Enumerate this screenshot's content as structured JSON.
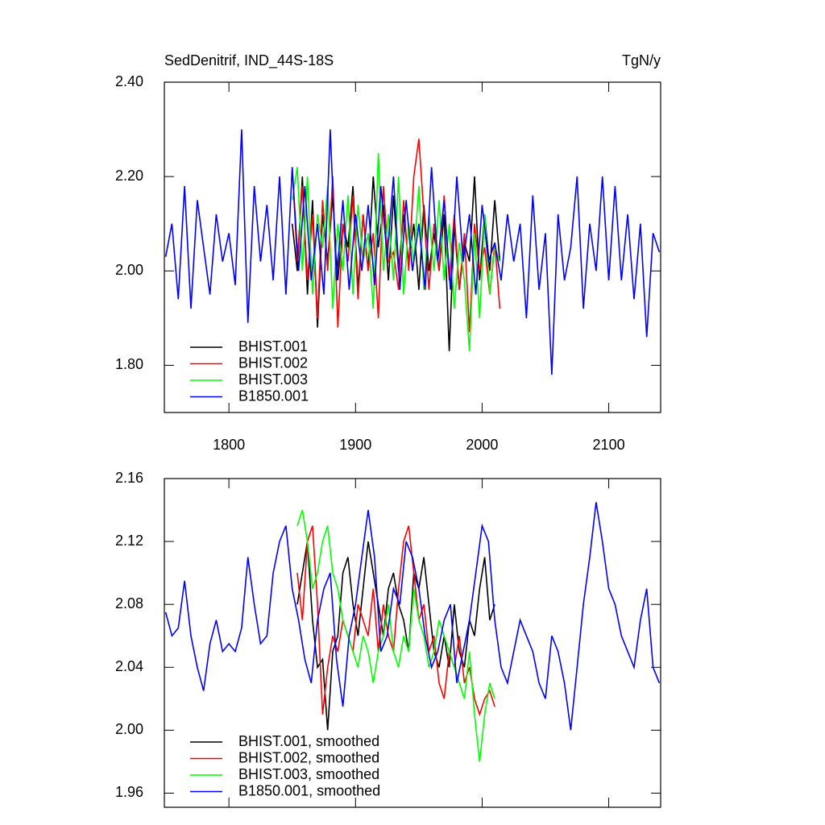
{
  "chart_data": [
    {
      "type": "line",
      "title": "SedDenitrif, IND_44S-18S",
      "units": "TgN/y",
      "xlim": [
        1749,
        2141
      ],
      "xticks": [
        1800,
        1900,
        2000,
        2100
      ],
      "show_xtick_labels": true,
      "ylim": [
        1.7,
        2.4
      ],
      "yticks": [
        {
          "value": 1.8,
          "label": "1.80"
        },
        {
          "value": 2.0,
          "label": "2.00"
        },
        {
          "value": 2.2,
          "label": "2.20"
        },
        {
          "value": 2.4,
          "label": "2.40"
        }
      ],
      "legend": "lower left",
      "series": [
        {
          "name": "BHIST.001",
          "color": "#000000",
          "x": [
            1850,
            1854,
            1858,
            1862,
            1866,
            1870,
            1874,
            1878,
            1882,
            1886,
            1890,
            1894,
            1898,
            1902,
            1906,
            1910,
            1914,
            1918,
            1922,
            1926,
            1930,
            1934,
            1938,
            1942,
            1946,
            1950,
            1954,
            1958,
            1962,
            1966,
            1970,
            1974,
            1978,
            1982,
            1986,
            1990,
            1994,
            1998,
            2002,
            2006,
            2010,
            2014
          ],
          "values": [
            2.1,
            2.0,
            2.2,
            1.95,
            2.15,
            1.88,
            2.12,
            2.02,
            2.16,
            1.98,
            2.1,
            2.05,
            2.18,
            1.96,
            2.12,
            2.0,
            2.2,
            2.05,
            2.14,
            1.98,
            2.16,
            2.0,
            2.12,
            2.02,
            2.1,
            1.96,
            2.14,
            2.0,
            2.08,
            2.0,
            2.12,
            1.83,
            2.1,
            1.96,
            2.06,
            2.02,
            2.2,
            1.98,
            2.12,
            2.0,
            2.15,
            2.02
          ]
        },
        {
          "name": "BHIST.002",
          "color": "#ff0000",
          "x": [
            1850,
            1854,
            1858,
            1862,
            1866,
            1870,
            1874,
            1878,
            1882,
            1886,
            1890,
            1894,
            1898,
            1902,
            1906,
            1910,
            1914,
            1918,
            1922,
            1926,
            1930,
            1934,
            1938,
            1942,
            1946,
            1950,
            1954,
            1958,
            1962,
            1966,
            1970,
            1974,
            1978,
            1982,
            1986,
            1990,
            1994,
            1998,
            2002,
            2006,
            2010,
            2014
          ],
          "values": [
            2.22,
            2.02,
            2.18,
            1.98,
            2.12,
            1.9,
            2.15,
            2.0,
            2.2,
            1.88,
            2.1,
            2.02,
            2.16,
            1.94,
            2.12,
            2.0,
            2.08,
            1.9,
            2.18,
            2.02,
            2.04,
            1.96,
            2.15,
            2.0,
            2.2,
            2.28,
            2.12,
            1.96,
            2.1,
            2.0,
            2.16,
            1.98,
            2.12,
            1.96,
            2.08,
            1.87,
            2.1,
            2.0,
            2.05,
            1.95,
            2.06,
            1.92
          ]
        },
        {
          "name": "BHIST.003",
          "color": "#00ff00",
          "x": [
            1850,
            1854,
            1858,
            1862,
            1866,
            1870,
            1874,
            1878,
            1882,
            1886,
            1890,
            1894,
            1898,
            1902,
            1906,
            1910,
            1914,
            1918,
            1922,
            1926,
            1930,
            1934,
            1938,
            1942,
            1946,
            1950,
            1954,
            1958,
            1962,
            1966,
            1970,
            1974,
            1978,
            1982,
            1986,
            1990,
            1994,
            1998,
            2002,
            2006,
            2010,
            2014
          ],
          "values": [
            2.15,
            2.22,
            2.0,
            2.2,
            1.95,
            2.12,
            2.05,
            2.18,
            1.92,
            2.1,
            2.0,
            2.16,
            1.95,
            2.14,
            2.02,
            2.08,
            1.92,
            2.25,
            2.0,
            2.12,
            1.98,
            2.2,
            1.95,
            2.1,
            2.02,
            2.18,
            1.96,
            2.12,
            2.0,
            2.15,
            1.98,
            2.1,
            1.92,
            2.06,
            1.98,
            1.83,
            2.08,
            1.9,
            2.12,
            1.95,
            2.05,
            2.02
          ]
        },
        {
          "name": "B1850.001",
          "color": "#0000ff",
          "x": [
            1750,
            1755,
            1760,
            1765,
            1770,
            1775,
            1780,
            1785,
            1790,
            1795,
            1800,
            1805,
            1810,
            1815,
            1820,
            1825,
            1830,
            1835,
            1840,
            1845,
            1850,
            1855,
            1860,
            1865,
            1870,
            1875,
            1880,
            1885,
            1890,
            1895,
            1900,
            1905,
            1910,
            1915,
            1920,
            1925,
            1930,
            1935,
            1940,
            1945,
            1950,
            1955,
            1960,
            1965,
            1970,
            1975,
            1980,
            1985,
            1990,
            1995,
            2000,
            2005,
            2010,
            2015,
            2020,
            2025,
            2030,
            2035,
            2040,
            2045,
            2050,
            2055,
            2060,
            2065,
            2070,
            2075,
            2080,
            2085,
            2090,
            2095,
            2100,
            2105,
            2110,
            2115,
            2120,
            2125,
            2130,
            2135,
            2140
          ],
          "values": [
            2.03,
            2.1,
            1.94,
            2.18,
            1.92,
            2.15,
            2.05,
            1.95,
            2.12,
            2.02,
            2.08,
            1.97,
            2.3,
            1.89,
            2.18,
            2.02,
            2.14,
            1.98,
            2.2,
            1.95,
            2.22,
            2.0,
            2.18,
            1.98,
            2.1,
            1.95,
            2.3,
            1.98,
            2.15,
            1.96,
            2.12,
            2.0,
            2.14,
            1.97,
            2.18,
            2.03,
            2.2,
            1.96,
            2.15,
            2.0,
            2.1,
            1.96,
            2.22,
            2.02,
            2.15,
            1.96,
            2.2,
            2.02,
            2.12,
            1.95,
            2.14,
            2.02,
            2.06,
            1.98,
            2.12,
            2.02,
            2.1,
            1.9,
            2.16,
            1.96,
            2.08,
            1.78,
            2.12,
            1.98,
            2.05,
            2.2,
            1.92,
            2.1,
            2.0,
            2.2,
            1.98,
            2.18,
            1.98,
            2.12,
            1.94,
            2.1,
            1.86,
            2.08,
            2.04
          ]
        }
      ]
    },
    {
      "type": "line",
      "xlim": [
        1749,
        2141
      ],
      "xticks": [
        1800,
        1900,
        2000,
        2100
      ],
      "show_xtick_labels": false,
      "ylim": [
        1.951,
        2.16
      ],
      "yticks": [
        1.96,
        {
          "value": 2.0,
          "label": "2.00"
        },
        2.04,
        2.08,
        2.12,
        2.16
      ],
      "legend": "lower left",
      "series": [
        {
          "name": "BHIST.001, smoothed",
          "color": "#000000",
          "x": [
            1854,
            1858,
            1862,
            1866,
            1870,
            1874,
            1878,
            1882,
            1886,
            1890,
            1894,
            1898,
            1902,
            1906,
            1910,
            1914,
            1918,
            1922,
            1926,
            1930,
            1934,
            1938,
            1942,
            1946,
            1950,
            1954,
            1958,
            1962,
            1966,
            1970,
            1974,
            1978,
            1982,
            1986,
            1990,
            1994,
            1998,
            2002,
            2006,
            2010
          ],
          "values": [
            2.08,
            2.1,
            2.12,
            2.07,
            2.04,
            2.045,
            2.0,
            2.05,
            2.06,
            2.1,
            2.11,
            2.08,
            2.06,
            2.09,
            2.12,
            2.1,
            2.08,
            2.06,
            2.09,
            2.1,
            2.08,
            2.07,
            2.05,
            2.1,
            2.09,
            2.11,
            2.08,
            2.05,
            2.04,
            2.06,
            2.04,
            2.08,
            2.05,
            2.04,
            2.07,
            2.06,
            2.09,
            2.11,
            2.07,
            2.08
          ]
        },
        {
          "name": "BHIST.002, smoothed",
          "color": "#ff0000",
          "x": [
            1854,
            1858,
            1862,
            1866,
            1870,
            1874,
            1878,
            1882,
            1886,
            1890,
            1894,
            1898,
            1902,
            1906,
            1910,
            1914,
            1918,
            1922,
            1926,
            1930,
            1934,
            1938,
            1942,
            1946,
            1950,
            1954,
            1958,
            1962,
            1966,
            1970,
            1974,
            1978,
            1982,
            1986,
            1990,
            1994,
            1998,
            2002,
            2006,
            2010
          ],
          "values": [
            2.1,
            2.07,
            2.12,
            2.13,
            2.08,
            2.01,
            2.04,
            2.06,
            2.05,
            2.07,
            2.06,
            2.05,
            2.08,
            2.07,
            2.06,
            2.09,
            2.05,
            2.08,
            2.06,
            2.05,
            2.09,
            2.12,
            2.13,
            2.1,
            2.07,
            2.08,
            2.05,
            2.06,
            2.03,
            2.02,
            2.05,
            2.04,
            2.06,
            2.03,
            2.04,
            2.02,
            2.01,
            2.02,
            2.025,
            2.015
          ]
        },
        {
          "name": "BHIST.003, smoothed",
          "color": "#00ff00",
          "x": [
            1854,
            1858,
            1862,
            1866,
            1870,
            1874,
            1878,
            1882,
            1886,
            1890,
            1894,
            1898,
            1902,
            1906,
            1910,
            1914,
            1918,
            1922,
            1926,
            1930,
            1934,
            1938,
            1942,
            1946,
            1950,
            1954,
            1958,
            1962,
            1966,
            1970,
            1974,
            1978,
            1982,
            1986,
            1990,
            1994,
            1998,
            2002,
            2006,
            2010
          ],
          "values": [
            2.13,
            2.14,
            2.12,
            2.09,
            2.1,
            2.12,
            2.13,
            2.1,
            2.09,
            2.07,
            2.06,
            2.05,
            2.04,
            2.06,
            2.05,
            2.03,
            2.05,
            2.06,
            2.08,
            2.05,
            2.04,
            2.06,
            2.05,
            2.09,
            2.07,
            2.06,
            2.04,
            2.05,
            2.07,
            2.06,
            2.05,
            2.04,
            2.03,
            2.02,
            2.05,
            2.01,
            1.98,
            2.01,
            2.03,
            2.02
          ]
        },
        {
          "name": "B1850.001, smoothed",
          "color": "#0000ff",
          "x": [
            1750,
            1755,
            1760,
            1765,
            1770,
            1775,
            1780,
            1785,
            1790,
            1795,
            1800,
            1805,
            1810,
            1815,
            1820,
            1825,
            1830,
            1835,
            1840,
            1845,
            1850,
            1855,
            1860,
            1865,
            1870,
            1875,
            1880,
            1885,
            1890,
            1895,
            1900,
            1905,
            1910,
            1915,
            1920,
            1925,
            1930,
            1935,
            1940,
            1945,
            1950,
            1955,
            1960,
            1965,
            1970,
            1975,
            1980,
            1985,
            1990,
            1995,
            2000,
            2005,
            2010,
            2015,
            2020,
            2025,
            2030,
            2035,
            2040,
            2045,
            2050,
            2055,
            2060,
            2065,
            2070,
            2075,
            2080,
            2085,
            2090,
            2095,
            2100,
            2105,
            2110,
            2115,
            2120,
            2125,
            2130,
            2135,
            2140
          ],
          "values": [
            2.075,
            2.06,
            2.065,
            2.095,
            2.06,
            2.04,
            2.025,
            2.055,
            2.07,
            2.05,
            2.055,
            2.05,
            2.065,
            2.11,
            2.08,
            2.055,
            2.06,
            2.1,
            2.12,
            2.13,
            2.09,
            2.07,
            2.045,
            2.03,
            2.07,
            2.09,
            2.1,
            2.045,
            2.015,
            2.06,
            2.08,
            2.11,
            2.14,
            2.11,
            2.05,
            2.06,
            2.09,
            2.08,
            2.12,
            2.11,
            2.09,
            2.06,
            2.04,
            2.05,
            2.07,
            2.08,
            2.03,
            2.05,
            2.07,
            2.1,
            2.13,
            2.12,
            2.07,
            2.04,
            2.03,
            2.05,
            2.07,
            2.06,
            2.05,
            2.03,
            2.02,
            2.06,
            2.05,
            2.03,
            2.0,
            2.04,
            2.08,
            2.11,
            2.145,
            2.12,
            2.09,
            2.08,
            2.06,
            2.05,
            2.04,
            2.07,
            2.09,
            2.04,
            2.03
          ]
        }
      ]
    }
  ]
}
